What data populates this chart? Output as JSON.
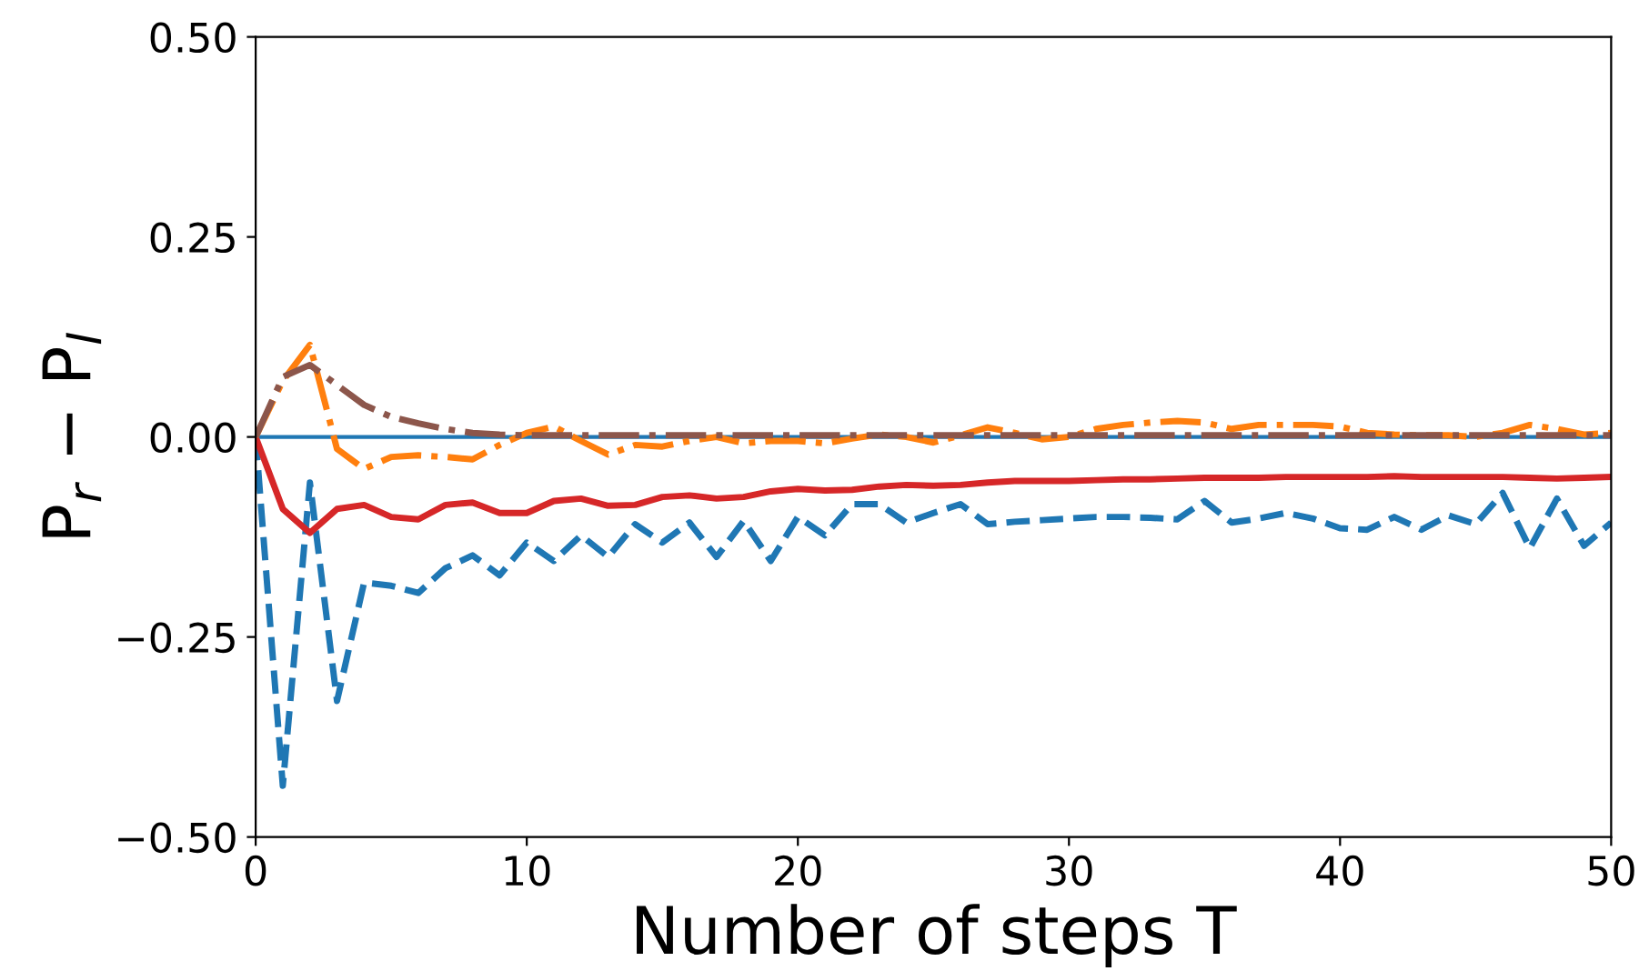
{
  "chart_data": {
    "type": "line",
    "xlabel": "Number of steps T",
    "ylabel": "P$_{r}$ − P$_{l}$",
    "x": [
      0,
      1,
      2,
      3,
      4,
      5,
      6,
      7,
      8,
      9,
      10,
      11,
      12,
      13,
      14,
      15,
      16,
      17,
      18,
      19,
      20,
      21,
      22,
      23,
      24,
      25,
      26,
      27,
      28,
      29,
      30,
      31,
      32,
      33,
      34,
      35,
      36,
      37,
      38,
      39,
      40,
      41,
      42,
      43,
      44,
      45,
      46,
      47,
      48,
      49,
      50
    ],
    "series": [
      {
        "color": "#1f77b4",
        "line_style": "dashed",
        "values": [
          0,
          -0.436,
          -0.057,
          -0.33,
          -0.182,
          -0.186,
          -0.195,
          -0.164,
          -0.148,
          -0.173,
          -0.132,
          -0.155,
          -0.123,
          -0.15,
          -0.109,
          -0.132,
          -0.107,
          -0.15,
          -0.105,
          -0.155,
          -0.1,
          -0.123,
          -0.084,
          -0.084,
          -0.107,
          -0.095,
          -0.084,
          -0.109,
          -0.106,
          -0.104,
          -0.102,
          -0.1,
          -0.1,
          -0.101,
          -0.103,
          -0.08,
          -0.107,
          -0.102,
          -0.095,
          -0.102,
          -0.114,
          -0.116,
          -0.1,
          -0.116,
          -0.098,
          -0.109,
          -0.07,
          -0.139,
          -0.077,
          -0.136,
          -0.107
        ]
      },
      {
        "color": "#d62728",
        "line_style": "solid",
        "values": [
          0,
          -0.09,
          -0.12,
          -0.09,
          -0.085,
          -0.1,
          -0.103,
          -0.085,
          -0.082,
          -0.095,
          -0.095,
          -0.08,
          -0.077,
          -0.086,
          -0.085,
          -0.075,
          -0.073,
          -0.077,
          -0.075,
          -0.068,
          -0.065,
          -0.067,
          -0.066,
          -0.062,
          -0.06,
          -0.061,
          -0.06,
          -0.057,
          -0.055,
          -0.055,
          -0.055,
          -0.054,
          -0.053,
          -0.053,
          -0.052,
          -0.051,
          -0.051,
          -0.051,
          -0.05,
          -0.05,
          -0.05,
          -0.05,
          -0.049,
          -0.05,
          -0.05,
          -0.05,
          -0.05,
          -0.051,
          -0.052,
          -0.051,
          -0.05
        ]
      },
      {
        "color": "#ff7f0e",
        "line_style": "dashdot",
        "values": [
          0,
          0.07,
          0.115,
          -0.015,
          -0.04,
          -0.025,
          -0.023,
          -0.025,
          -0.028,
          -0.01,
          0.005,
          0.013,
          -0.005,
          -0.022,
          -0.01,
          -0.012,
          -0.005,
          0,
          -0.008,
          -0.005,
          -0.005,
          -0.008,
          -0.002,
          0.003,
          0,
          -0.007,
          0.002,
          0.012,
          0.005,
          -0.003,
          0,
          0.01,
          0.015,
          0.018,
          0.02,
          0.018,
          0.01,
          0.015,
          0.015,
          0.015,
          0.013,
          0.005,
          0.003,
          0.002,
          0.002,
          0,
          0.005,
          0.015,
          0.01,
          0.003,
          0.005
        ]
      },
      {
        "color": "#8c564b",
        "line_style": "dashdot",
        "values": [
          0,
          0.075,
          0.09,
          0.065,
          0.04,
          0.025,
          0.017,
          0.01,
          0.005,
          0.003,
          0.002,
          0.002,
          0.002,
          0.002,
          0.002,
          0.002,
          0.002,
          0.002,
          0.002,
          0.002,
          0.002,
          0.002,
          0.002,
          0.002,
          0.002,
          0.002,
          0.002,
          0.002,
          0.002,
          0.002,
          0.002,
          0.002,
          0.002,
          0.002,
          0.002,
          0.002,
          0.002,
          0.002,
          0.002,
          0.002,
          0.002,
          0.002,
          0.002,
          0.002,
          0.002,
          0.002,
          0.002,
          0.002,
          0.002,
          0.002,
          0.002
        ]
      }
    ],
    "ref_lines": [
      {
        "axis": "y",
        "value": 0,
        "color": "#1f77b4",
        "line_style": "solid"
      }
    ],
    "xlim": [
      0,
      50
    ],
    "xticks": [
      0,
      10,
      20,
      30,
      40,
      50
    ],
    "ylim": [
      -0.5,
      0.5
    ],
    "yticks": [
      {
        "value": -0.5,
        "label": "−0.50"
      },
      {
        "value": -0.25,
        "label": "−0.25"
      },
      {
        "value": 0,
        "label": "0.00"
      },
      {
        "value": 0.25,
        "label": "0.25"
      },
      {
        "value": 0.5,
        "label": "0.50"
      }
    ],
    "grid": false,
    "legend": false
  }
}
